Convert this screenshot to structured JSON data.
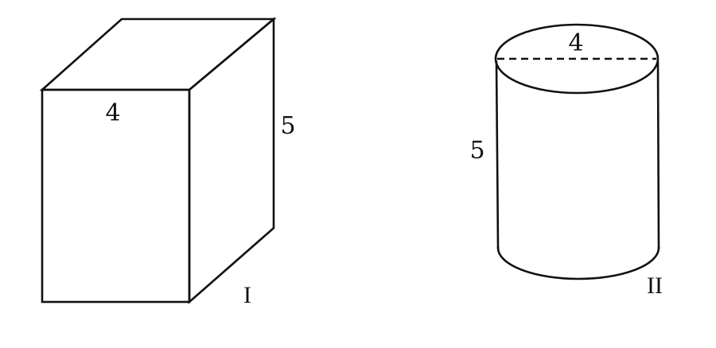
{
  "figure_one": {
    "shape": "rectangular box",
    "labels": {
      "width": "4",
      "height": "5",
      "name": "I"
    }
  },
  "figure_two": {
    "shape": "cylinder",
    "labels": {
      "diameter": "4",
      "height": "5",
      "name": "II"
    }
  },
  "colors": {
    "line": "#111111",
    "background": "#ffffff"
  }
}
